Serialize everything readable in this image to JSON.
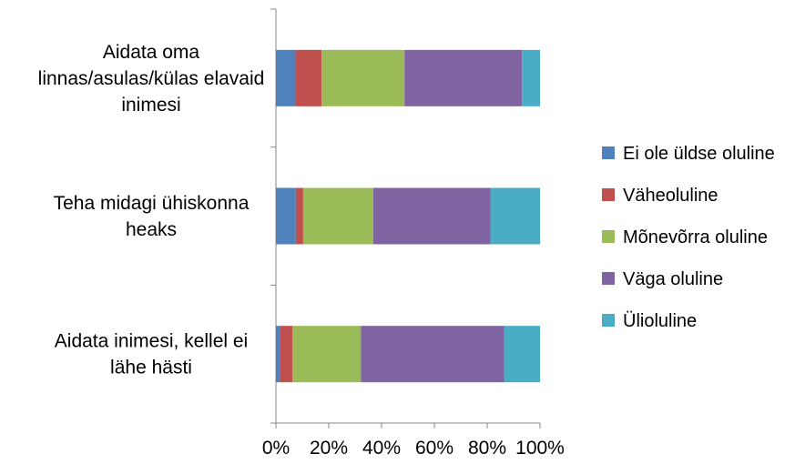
{
  "chart_data": {
    "type": "bar",
    "orientation": "horizontal",
    "stacked": "percent",
    "categories": [
      [
        "Aidata inimesi, kellel ei",
        "lähe hästi"
      ],
      [
        "Teha midagi ühiskonna",
        "heaks"
      ],
      [
        "Aidata oma",
        "linnas/asulas/külas elavaid",
        "inimesi"
      ]
    ],
    "series": [
      {
        "name": "Ei ole üldse oluline",
        "color": "#4f81bd",
        "values": [
          1.7,
          7.5,
          7.4
        ]
      },
      {
        "name": "Väheoluline",
        "color": "#c0504d",
        "values": [
          4.5,
          2.8,
          9.9
        ]
      },
      {
        "name": "Mõnevõrra oluline",
        "color": "#9bbb59",
        "values": [
          26.0,
          26.6,
          31.4
        ]
      },
      {
        "name": "Väga oluline",
        "color": "#8064a2",
        "values": [
          54.3,
          44.3,
          44.5
        ]
      },
      {
        "name": "Ülioluline",
        "color": "#4bacc6",
        "values": [
          13.5,
          18.8,
          6.8
        ]
      }
    ],
    "xaxis_ticks": [
      "0%",
      "20%",
      "40%",
      "60%",
      "80%",
      "100%"
    ],
    "xlim": [
      0,
      100
    ],
    "grid": false,
    "legend_position": "right"
  }
}
